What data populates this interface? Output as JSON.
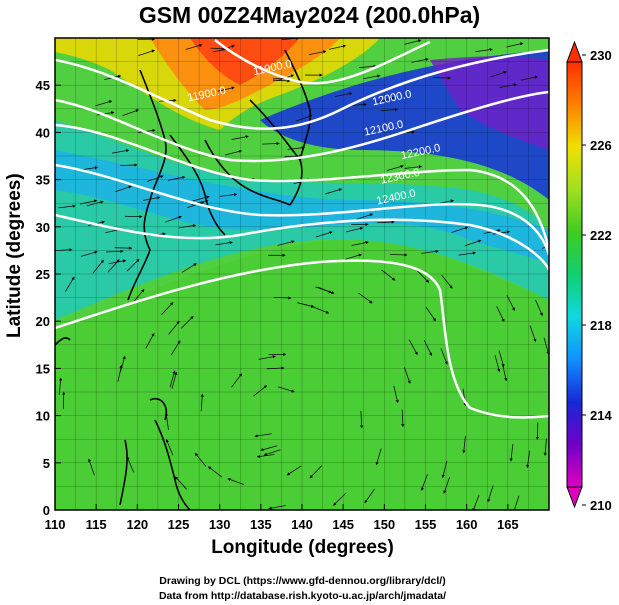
{
  "title": "GSM 00Z24May2024 (200.0hPa)",
  "x_axis": {
    "label": "Longitude (degrees)",
    "range": [
      110,
      170
    ],
    "ticks": [
      110,
      115,
      120,
      125,
      130,
      135,
      140,
      145,
      150,
      155,
      160,
      165
    ]
  },
  "y_axis": {
    "label": "Latitude  (degrees)",
    "range": [
      0,
      50
    ],
    "ticks": [
      0,
      5,
      10,
      15,
      20,
      25,
      30,
      35,
      40,
      45
    ]
  },
  "colorbar": {
    "ticks": [
      210,
      214,
      218,
      222,
      226,
      230
    ],
    "range": [
      210,
      230
    ],
    "colors": [
      "#e000c0",
      "#7000c8",
      "#1828d8",
      "#1090ff",
      "#10d8e0",
      "#10d070",
      "#40cc20",
      "#a0e020",
      "#f0e000",
      "#ff8000",
      "#ff3000"
    ]
  },
  "contour_labels": [
    {
      "text": "11900.0",
      "lon": 136.5,
      "lat": 46.5
    },
    {
      "text": "11900.0",
      "lon": 128.5,
      "lat": 43.7
    },
    {
      "text": "12000.0",
      "lon": 151.0,
      "lat": 43.3
    },
    {
      "text": "12100.0",
      "lon": 150.0,
      "lat": 40.1
    },
    {
      "text": "12200.0",
      "lon": 154.5,
      "lat": 37.6
    },
    {
      "text": "12300.0",
      "lon": 152.0,
      "lat": 35.0
    },
    {
      "text": "12400.0",
      "lon": 151.5,
      "lat": 32.8
    }
  ],
  "credits": {
    "line1": "Drawing by DCL (https://www.gfd-dennou.org/library/dcl/)",
    "line2": "Data from http://database.rish.kyoto-u.ac.jp/arch/jmadata/"
  }
}
